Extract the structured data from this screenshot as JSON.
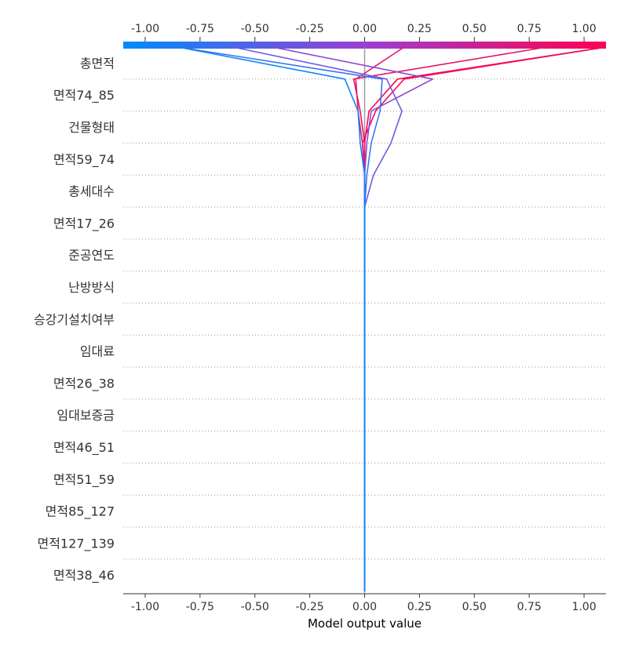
{
  "chart_data": {
    "type": "line",
    "plot_kind": "shap-decision-plot",
    "xlabel": "Model output value",
    "xlim": [
      -1.1,
      1.1
    ],
    "x_ticks": [
      -1.0,
      -0.75,
      -0.5,
      -0.25,
      0.0,
      0.25,
      0.5,
      0.75,
      1.0
    ],
    "x_tick_labels": [
      "-1.00",
      "-0.75",
      "-0.50",
      "-0.25",
      "0.00",
      "0.25",
      "0.50",
      "0.75",
      "1.00"
    ],
    "base_value": 0.0,
    "grid": "dotted horizontal between features",
    "colorbar": {
      "position": "top",
      "low_color": "#008bfb",
      "high_color": "#ff0051"
    },
    "features": [
      "총면적",
      "면적74_85",
      "건물형태",
      "면적59_74",
      "총세대수",
      "면적17_26",
      "준공연도",
      "난방방식",
      "승강기설치여부",
      "임대료",
      "면적26_38",
      "임대보증금",
      "면적46_51",
      "면적51_59",
      "면적85_127",
      "면적127_139",
      "면적38_46"
    ],
    "series": [
      {
        "color": "#ff0051",
        "values": [
          1.1,
          0.15,
          0.02,
          0.0,
          0.0,
          0.0,
          0.0,
          0.0,
          0.0,
          0.0,
          0.0,
          0.0,
          0.0,
          0.0,
          0.0,
          0.0,
          0.0,
          0.0
        ]
      },
      {
        "color": "#f20a5c",
        "values": [
          1.1,
          0.18,
          0.05,
          -0.01,
          0.0,
          0.0,
          0.0,
          0.0,
          0.0,
          0.0,
          0.0,
          0.0,
          0.0,
          0.0,
          0.0,
          0.0,
          0.0,
          0.0
        ]
      },
      {
        "color": "#e81464",
        "values": [
          0.83,
          -0.05,
          -0.02,
          0.0,
          0.0,
          0.0,
          0.0,
          0.0,
          0.0,
          0.0,
          0.0,
          0.0,
          0.0,
          0.0,
          0.0,
          0.0,
          0.0,
          0.0
        ]
      },
      {
        "color": "#dd1e6e",
        "values": [
          0.18,
          -0.04,
          -0.03,
          -0.01,
          0.0,
          0.0,
          0.0,
          0.0,
          0.0,
          0.0,
          0.0,
          0.0,
          0.0,
          0.0,
          0.0,
          0.0,
          0.0,
          0.0
        ]
      },
      {
        "color": "#8a4ad0",
        "values": [
          -0.42,
          0.31,
          0.03,
          0.01,
          0.0,
          0.0,
          0.0,
          0.0,
          0.0,
          0.0,
          0.0,
          0.0,
          0.0,
          0.0,
          0.0,
          0.0,
          0.0,
          0.0
        ]
      },
      {
        "color": "#6a5ce0",
        "values": [
          -0.6,
          0.1,
          0.17,
          0.12,
          0.04,
          0.0,
          0.0,
          0.0,
          0.0,
          0.0,
          0.0,
          0.0,
          0.0,
          0.0,
          0.0,
          0.0,
          0.0,
          0.0
        ]
      },
      {
        "color": "#3a75ee",
        "values": [
          -0.85,
          0.08,
          0.07,
          0.03,
          0.01,
          0.0,
          0.0,
          0.0,
          0.0,
          0.0,
          0.0,
          0.0,
          0.0,
          0.0,
          0.0,
          0.0,
          0.0,
          0.0
        ]
      },
      {
        "color": "#0b86f8",
        "values": [
          -0.85,
          -0.09,
          -0.03,
          -0.02,
          0.0,
          0.0,
          0.0,
          0.0,
          0.0,
          0.0,
          0.0,
          0.0,
          0.0,
          0.0,
          0.0,
          0.0,
          0.0,
          0.0
        ]
      }
    ]
  }
}
